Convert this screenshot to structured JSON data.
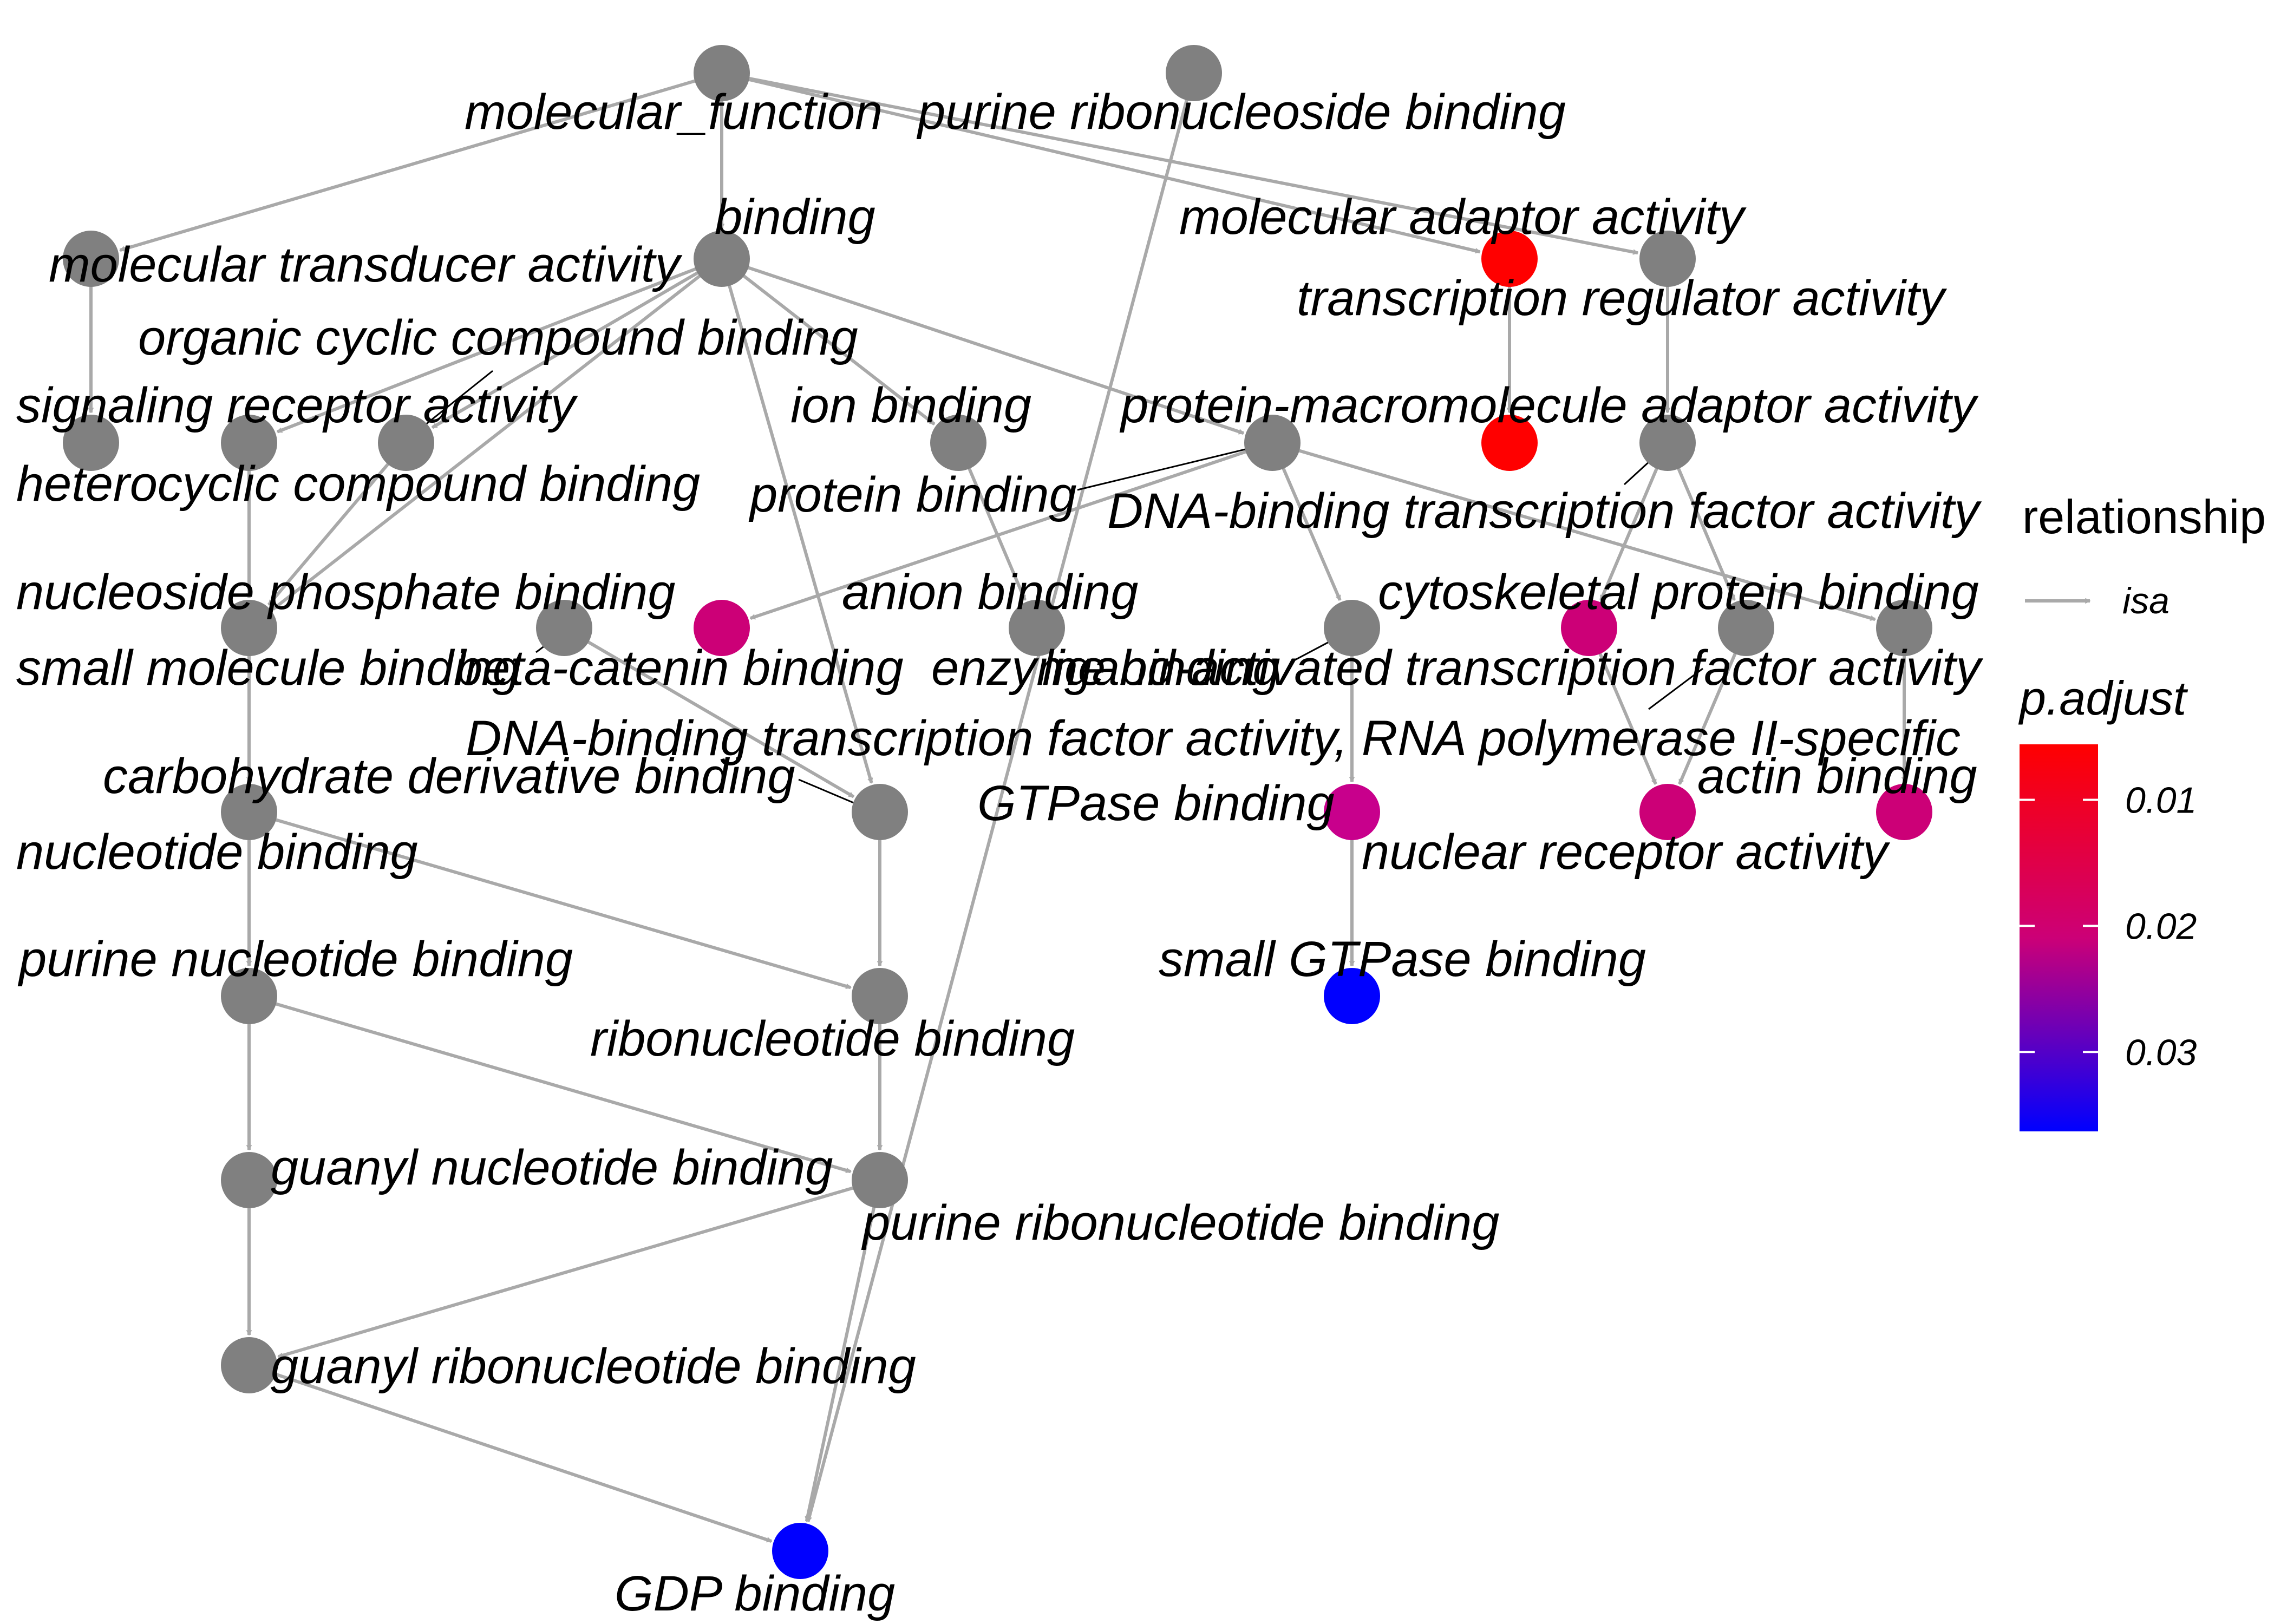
{
  "legend": {
    "relationship_title": "relationship",
    "relationship_entry": "isa",
    "edge_color": "#a9a9a9",
    "padjust_title": "p.adjust",
    "gradient_top": "#ff0000",
    "gradient_bottom": "#0000ff",
    "padjust_ticks": [
      {
        "label": "0.01",
        "value": 0.01
      },
      {
        "label": "0.02",
        "value": 0.02
      },
      {
        "label": "0.03",
        "value": 0.03
      }
    ],
    "padjust_range": [
      0.0056,
      0.0363
    ]
  },
  "graph": {
    "nodes": [
      {
        "id": "molecular_function",
        "label": "molecular_function",
        "color": "#808080"
      },
      {
        "id": "purine_ribonucleoside_binding",
        "label": "purine ribonucleoside binding",
        "color": "#808080"
      },
      {
        "id": "binding",
        "label": "binding",
        "color": "#808080"
      },
      {
        "id": "molecular_transducer_activity",
        "label": "molecular transducer activity",
        "color": "#808080"
      },
      {
        "id": "molecular_adaptor_activity",
        "label": "molecular adaptor activity",
        "color": "#ff0000"
      },
      {
        "id": "transcription_regulator_activity",
        "label": "transcription regulator activity",
        "color": "#808080"
      },
      {
        "id": "organic_cyclic_compound_binding",
        "label": "organic cyclic compound binding",
        "color": "#808080"
      },
      {
        "id": "signaling_receptor_activity",
        "label": "signaling receptor activity",
        "color": "#808080"
      },
      {
        "id": "heterocyclic_compound_binding",
        "label": "heterocyclic compound binding",
        "color": "#808080"
      },
      {
        "id": "ion_binding",
        "label": "ion binding",
        "color": "#808080"
      },
      {
        "id": "protein_binding",
        "label": "protein binding",
        "color": "#808080"
      },
      {
        "id": "protein_macromolecule_adaptor_activity",
        "label": "protein-macromolecule adaptor activity",
        "color": "#ff0000"
      },
      {
        "id": "dna_binding_tf_activity",
        "label": "DNA-binding transcription factor activity",
        "color": "#808080"
      },
      {
        "id": "nucleoside_phosphate_binding",
        "label": "nucleoside phosphate binding",
        "color": "#808080"
      },
      {
        "id": "small_molecule_binding",
        "label": "small molecule binding",
        "color": "#808080"
      },
      {
        "id": "beta_catenin_binding",
        "label": "beta-catenin binding",
        "color": "#cc0077"
      },
      {
        "id": "anion_binding",
        "label": "anion binding",
        "color": "#808080"
      },
      {
        "id": "enzyme_binding",
        "label": "enzyme binding",
        "color": "#808080"
      },
      {
        "id": "ligand_activated_tf_activity",
        "label": "ligand-activated transcription factor activity",
        "color": "#808080"
      },
      {
        "id": "cytoskeletal_protein_binding",
        "label": "cytoskeletal protein binding",
        "color": "#808080"
      },
      {
        "id": "dna_binding_tf_activity_rnapii",
        "label": "DNA-binding transcription factor activity, RNA polymerase II-specific",
        "color": "#cc0077"
      },
      {
        "id": "node_1205",
        "label": "",
        "color": "#808080"
      },
      {
        "id": "carbohydrate_derivative_binding",
        "label": "carbohydrate derivative binding",
        "color": "#808080"
      },
      {
        "id": "nucleotide_binding",
        "label": "nucleotide binding",
        "color": "#808080"
      },
      {
        "id": "gtpase_binding",
        "label": "GTPase binding",
        "color": "#c8008c"
      },
      {
        "id": "actin_binding",
        "label": "actin binding",
        "color": "#cc0077"
      },
      {
        "id": "nuclear_receptor_activity",
        "label": "nuclear receptor activity",
        "color": "#cc0077"
      },
      {
        "id": "purine_nucleotide_binding",
        "label": "purine nucleotide binding",
        "color": "#808080"
      },
      {
        "id": "small_gtpase_binding",
        "label": "small GTPase binding",
        "color": "#0000ff"
      },
      {
        "id": "ribonucleotide_binding",
        "label": "ribonucleotide binding",
        "color": "#808080"
      },
      {
        "id": "guanyl_nucleotide_binding",
        "label": "guanyl nucleotide binding",
        "color": "#808080"
      },
      {
        "id": "purine_ribonucleotide_binding",
        "label": "purine ribonucleotide binding",
        "color": "#808080"
      },
      {
        "id": "guanyl_ribonucleotide_binding",
        "label": "guanyl ribonucleotide binding",
        "color": "#808080"
      },
      {
        "id": "gdp_binding",
        "label": "GDP binding",
        "color": "#0000ff"
      }
    ],
    "edges": [
      {
        "source": "molecular_function",
        "target": "binding"
      },
      {
        "source": "molecular_function",
        "target": "molecular_transducer_activity"
      },
      {
        "source": "molecular_function",
        "target": "molecular_adaptor_activity"
      },
      {
        "source": "molecular_function",
        "target": "transcription_regulator_activity"
      },
      {
        "source": "molecular_transducer_activity",
        "target": "signaling_receptor_activity"
      },
      {
        "source": "binding",
        "target": "organic_cyclic_compound_binding"
      },
      {
        "source": "binding",
        "target": "heterocyclic_compound_binding"
      },
      {
        "source": "binding",
        "target": "ion_binding"
      },
      {
        "source": "binding",
        "target": "protein_binding"
      },
      {
        "source": "binding",
        "target": "small_molecule_binding"
      },
      {
        "source": "binding",
        "target": "carbohydrate_derivative_binding"
      },
      {
        "source": "molecular_adaptor_activity",
        "target": "protein_macromolecule_adaptor_activity"
      },
      {
        "source": "transcription_regulator_activity",
        "target": "dna_binding_tf_activity"
      },
      {
        "source": "organic_cyclic_compound_binding",
        "target": "small_molecule_binding"
      },
      {
        "source": "heterocyclic_compound_binding",
        "target": "small_molecule_binding"
      },
      {
        "source": "ion_binding",
        "target": "anion_binding"
      },
      {
        "source": "protein_binding",
        "target": "beta_catenin_binding"
      },
      {
        "source": "protein_binding",
        "target": "enzyme_binding"
      },
      {
        "source": "protein_binding",
        "target": "cytoskeletal_protein_binding"
      },
      {
        "source": "dna_binding_tf_activity",
        "target": "dna_binding_tf_activity_rnapii"
      },
      {
        "source": "dna_binding_tf_activity",
        "target": "ligand_activated_tf_activity"
      },
      {
        "source": "purine_ribonucleoside_binding",
        "target": "gdp_binding"
      },
      {
        "source": "nucleoside_phosphate_binding",
        "target": "carbohydrate_derivative_binding"
      },
      {
        "source": "small_molecule_binding",
        "target": "nucleotide_binding"
      },
      {
        "source": "enzyme_binding",
        "target": "gtpase_binding"
      },
      {
        "source": "ligand_activated_tf_activity",
        "target": "nuclear_receptor_activity"
      },
      {
        "source": "dna_binding_tf_activity_rnapii",
        "target": "nuclear_receptor_activity"
      },
      {
        "source": "cytoskeletal_protein_binding",
        "target": "actin_binding"
      },
      {
        "source": "carbohydrate_derivative_binding",
        "target": "ribonucleotide_binding"
      },
      {
        "source": "nucleotide_binding",
        "target": "purine_nucleotide_binding"
      },
      {
        "source": "nucleotide_binding",
        "target": "ribonucleotide_binding"
      },
      {
        "source": "gtpase_binding",
        "target": "small_gtpase_binding"
      },
      {
        "source": "purine_nucleotide_binding",
        "target": "guanyl_nucleotide_binding"
      },
      {
        "source": "purine_nucleotide_binding",
        "target": "purine_ribonucleotide_binding"
      },
      {
        "source": "ribonucleotide_binding",
        "target": "purine_ribonucleotide_binding"
      },
      {
        "source": "guanyl_nucleotide_binding",
        "target": "guanyl_ribonucleotide_binding"
      },
      {
        "source": "purine_ribonucleotide_binding",
        "target": "guanyl_ribonucleotide_binding"
      },
      {
        "source": "purine_ribonucleotide_binding",
        "target": "gdp_binding"
      },
      {
        "source": "guanyl_ribonucleotide_binding",
        "target": "gdp_binding"
      }
    ]
  }
}
